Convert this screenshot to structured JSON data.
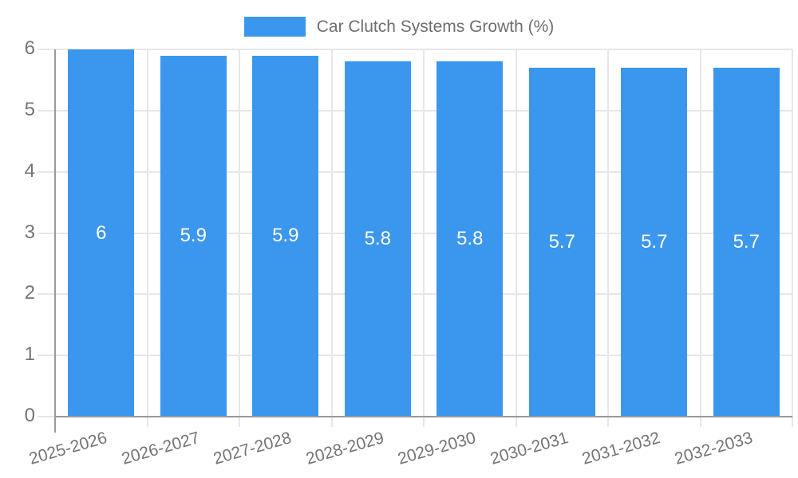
{
  "legend": {
    "label": "Car Clutch Systems Growth (%)"
  },
  "chart_data": {
    "type": "bar",
    "title": "Car Clutch Systems Growth (%)",
    "categories": [
      "2025-2026",
      "2026-2027",
      "2027-2028",
      "2028-2029",
      "2029-2030",
      "2030-2031",
      "2031-2032",
      "2032-2033"
    ],
    "values": [
      6,
      5.9,
      5.9,
      5.8,
      5.8,
      5.7,
      5.7,
      5.7
    ],
    "value_labels": [
      "6",
      "5.9",
      "5.9",
      "5.8",
      "5.8",
      "5.7",
      "5.7",
      "5.7"
    ],
    "xlabel": "",
    "ylabel": "",
    "ylim": [
      0,
      6
    ],
    "ytick_step": 1,
    "yticks": [
      0,
      1,
      2,
      3,
      4,
      5,
      6
    ],
    "grid": true,
    "legend_position": "top-center",
    "value_label_position": "inside-center"
  },
  "colors": {
    "bar": "#3b97ee",
    "grid": "#e7e7e7",
    "axis": "#9a9a9a",
    "tick_label": "#757575",
    "legend_text": "#6e6e6e",
    "bar_value_label": "#ffffff",
    "background": "#ffffff"
  }
}
